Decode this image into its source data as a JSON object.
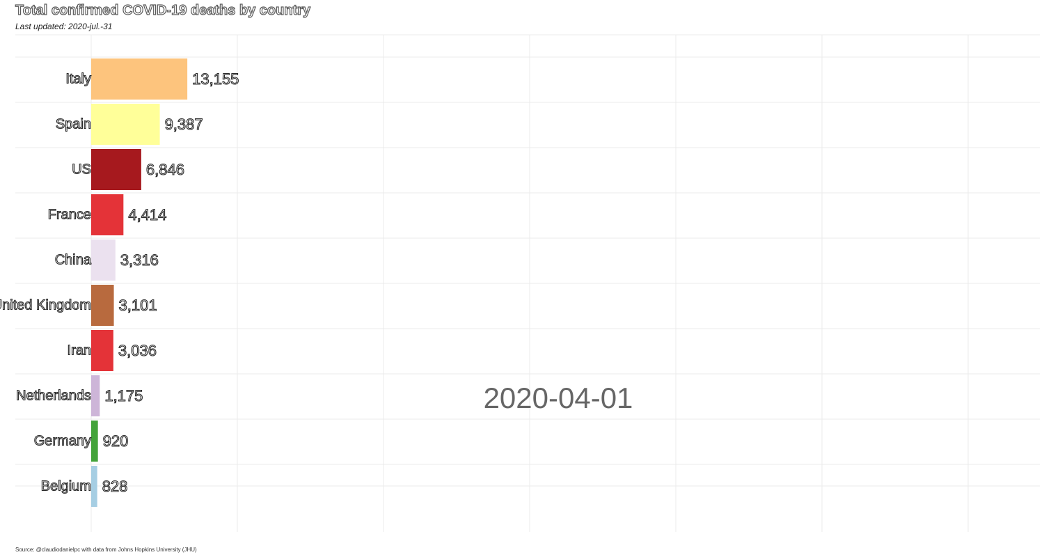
{
  "header": {
    "title": "Total confirmed COVID-19 deaths by country",
    "subtitle": "Last updated: 2020-jul.-31"
  },
  "footer": {
    "caption": "Source: @claudiodanielpc with data from Johns Hopkins University (JHU)"
  },
  "chart_data": {
    "type": "bar",
    "orientation": "horizontal",
    "date": "2020-04-01",
    "categories": [
      "Italy",
      "Spain",
      "US",
      "France",
      "China",
      "United Kingdom",
      "Iran",
      "Netherlands",
      "Germany",
      "Belgium"
    ],
    "values": [
      13155,
      9387,
      6846,
      4414,
      3316,
      3101,
      3036,
      1175,
      920,
      828
    ],
    "value_labels": [
      "13,155",
      "9,387",
      "6,846",
      "4,414",
      "3,316",
      "3,101",
      "3,036",
      "1,175",
      "920",
      "828"
    ],
    "colors": [
      "#FDC47D",
      "#FFFF99",
      "#A6191E",
      "#E43338",
      "#EBE1EF",
      "#B86A3E",
      "#E43338",
      "#CDB5D8",
      "#43A33A",
      "#A6CEE3"
    ],
    "xlim": [
      0,
      180000
    ],
    "grid": true,
    "legend": "none"
  }
}
